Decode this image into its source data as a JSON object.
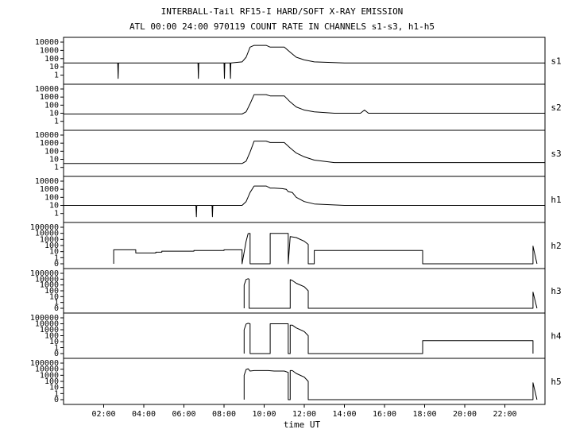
{
  "title": "INTERBALL-Tail RF15-I HARD/SOFT X-RAY EMISSION",
  "subtitle": "ATL 00:00 24:00 970119  COUNT RATE IN CHANNELS s1-s3, h1-h5",
  "chart_data": {
    "type": "line",
    "title": "INTERBALL-Tail RF15-I HARD/SOFT X-RAY EMISSION",
    "subtitle": "ATL 00:00 24:00 970119  COUNT RATE IN CHANNELS s1-s3, h1-h5",
    "xlabel": "time UT",
    "xlim": [
      0,
      24
    ],
    "x_ticks": [
      2,
      4,
      6,
      8,
      10,
      12,
      14,
      16,
      18,
      20,
      22
    ],
    "x_tick_labels": [
      "02:00",
      "04:00",
      "06:00",
      "08:00",
      "10:00",
      "12:00",
      "14:00",
      "16:00",
      "18:00",
      "20:00",
      "22:00"
    ],
    "yscale": "log",
    "grid": false,
    "panels": [
      {
        "name": "s1",
        "ylim": [
          0.3,
          10000
        ],
        "y_ticks": [
          1,
          10,
          100,
          1000,
          10000
        ],
        "y_tick_labels": [
          "1",
          "10",
          "100",
          "1000",
          "10000"
        ],
        "series": {
          "x": [
            0,
            2.7,
            2.72,
            2.74,
            6.7,
            6.72,
            6.74,
            8.0,
            8.02,
            8.04,
            8.3,
            8.32,
            8.34,
            8.9,
            9.1,
            9.3,
            9.5,
            10.1,
            10.3,
            11.0,
            11.3,
            11.6,
            12.0,
            12.5,
            14.0,
            20.0,
            24.0
          ],
          "y": [
            30,
            30,
            0.4,
            30,
            30,
            0.4,
            30,
            30,
            0.4,
            30,
            30,
            0.4,
            30,
            40,
            150,
            2500,
            4000,
            4000,
            2500,
            2500,
            600,
            150,
            70,
            40,
            30,
            30,
            30
          ]
        }
      },
      {
        "name": "s2",
        "ylim": [
          0.3,
          10000
        ],
        "y_ticks": [
          1,
          10,
          100,
          1000,
          10000
        ],
        "y_tick_labels": [
          "1",
          "10",
          "100",
          "1000",
          "10000"
        ],
        "series": {
          "x": [
            0,
            8.9,
            9.1,
            9.3,
            9.5,
            10.1,
            10.3,
            11.0,
            11.3,
            11.6,
            12.0,
            12.5,
            13.5,
            14.8,
            15.0,
            15.2,
            24.0
          ],
          "y": [
            8,
            8,
            15,
            150,
            2000,
            2000,
            1400,
            1400,
            250,
            60,
            25,
            15,
            10,
            10,
            25,
            10,
            10
          ]
        }
      },
      {
        "name": "s3",
        "ylim": [
          0.3,
          10000
        ],
        "y_ticks": [
          1,
          10,
          100,
          1000,
          10000
        ],
        "y_tick_labels": [
          "1",
          "10",
          "100",
          "1000",
          "10000"
        ],
        "series": {
          "x": [
            0,
            8.9,
            9.1,
            9.3,
            9.5,
            10.1,
            10.3,
            11.0,
            11.3,
            11.6,
            12.0,
            12.5,
            13.5,
            24.0
          ],
          "y": [
            3,
            3,
            6,
            80,
            1800,
            1800,
            1200,
            1200,
            250,
            60,
            20,
            8,
            4,
            4
          ]
        }
      },
      {
        "name": "h1",
        "ylim": [
          0.3,
          10000
        ],
        "y_ticks": [
          1,
          10,
          100,
          1000,
          10000
        ],
        "y_tick_labels": [
          "1",
          "10",
          "100",
          "1000",
          "10000"
        ],
        "series": {
          "x": [
            0,
            6.6,
            6.62,
            6.64,
            7.4,
            7.42,
            7.44,
            8.9,
            9.1,
            9.3,
            9.5,
            10.1,
            10.3,
            10.5,
            10.9,
            11.1,
            11.2,
            11.4,
            11.6,
            12.0,
            12.5,
            14.0,
            24.0
          ],
          "y": [
            10,
            10,
            0.4,
            10,
            10,
            0.4,
            10,
            10,
            30,
            400,
            2500,
            2500,
            1400,
            1400,
            1200,
            1000,
            500,
            400,
            100,
            30,
            15,
            10,
            10
          ]
        }
      },
      {
        "name": "h2",
        "ylim": [
          0,
          100000
        ],
        "y_ticks": [
          0,
          1,
          10,
          100,
          1000,
          10000,
          100000
        ],
        "y_tick_labels": [
          "0",
          "1",
          "10",
          "100",
          "1000",
          "10000",
          "100000"
        ],
        "series": {
          "x": [
            2.5,
            2.5,
            3.6,
            3.6,
            4.6,
            4.6,
            4.9,
            4.9,
            5.4,
            5.4,
            6.5,
            6.5,
            8.0,
            8.0,
            8.9,
            8.9,
            9.1,
            9.2,
            9.3,
            9.3,
            10.3,
            10.3,
            11.2,
            11.2,
            11.3,
            11.6,
            12.0,
            12.2,
            12.2,
            12.5,
            12.5,
            17.9,
            17.9,
            23.4,
            23.4,
            23.6
          ],
          "y": [
            0,
            20,
            20,
            6,
            6,
            8,
            8,
            12,
            12,
            12,
            12,
            15,
            15,
            20,
            20,
            0,
            500,
            9000,
            10000,
            0,
            0,
            10000,
            10000,
            0,
            3000,
            2000,
            500,
            150,
            0,
            0,
            15,
            15,
            0,
            0,
            80,
            0
          ]
        }
      },
      {
        "name": "h3",
        "ylim": [
          0,
          100000
        ],
        "y_ticks": [
          0,
          1,
          10,
          100,
          1000,
          10000,
          100000
        ],
        "y_tick_labels": [
          "0",
          "1",
          "10",
          "100",
          "1000",
          "10000",
          "100000"
        ],
        "series": {
          "x": [
            9.0,
            9.0,
            9.1,
            9.2,
            9.25,
            9.25,
            11.3,
            11.3,
            11.4,
            11.6,
            12.0,
            12.2,
            12.2,
            23.4,
            23.4,
            23.6
          ],
          "y": [
            0,
            1000,
            9000,
            12000,
            10000,
            0,
            0,
            8000,
            6000,
            2000,
            500,
            100,
            0,
            0,
            60,
            0
          ]
        }
      },
      {
        "name": "h4",
        "ylim": [
          0,
          100000
        ],
        "y_ticks": [
          0,
          1,
          10,
          100,
          1000,
          10000,
          100000
        ],
        "y_tick_labels": [
          "0",
          "1",
          "10",
          "100",
          "1000",
          "10000",
          "100000"
        ],
        "series": {
          "x": [
            9.0,
            9.0,
            9.1,
            9.2,
            9.3,
            9.3,
            10.3,
            10.3,
            11.2,
            11.2,
            11.3,
            11.3,
            11.4,
            11.6,
            12.0,
            12.2,
            12.2,
            17.9,
            17.9,
            23.4,
            23.4
          ],
          "y": [
            0,
            1000,
            9000,
            12000,
            10000,
            0,
            0,
            10000,
            10000,
            0,
            0,
            6000,
            6000,
            2000,
            500,
            100,
            0,
            0,
            15,
            15,
            0
          ]
        }
      },
      {
        "name": "h5",
        "ylim": [
          0,
          100000
        ],
        "y_ticks": [
          0,
          1,
          10,
          100,
          1000,
          10000,
          100000
        ],
        "y_tick_labels": [
          "0",
          "1",
          "10",
          "100",
          "1000",
          "10000",
          "100000"
        ],
        "series": {
          "x": [
            9.0,
            9.0,
            9.1,
            9.2,
            9.3,
            9.5,
            10.2,
            10.5,
            11.0,
            11.2,
            11.2,
            11.3,
            11.3,
            11.4,
            11.6,
            12.0,
            12.2,
            12.2,
            23.4,
            23.4,
            23.6
          ],
          "y": [
            0,
            1000,
            9000,
            12000,
            5000,
            6000,
            6000,
            5000,
            5000,
            3000,
            0,
            0,
            6000,
            6000,
            2000,
            500,
            100,
            0,
            0,
            60,
            0
          ]
        }
      }
    ]
  }
}
